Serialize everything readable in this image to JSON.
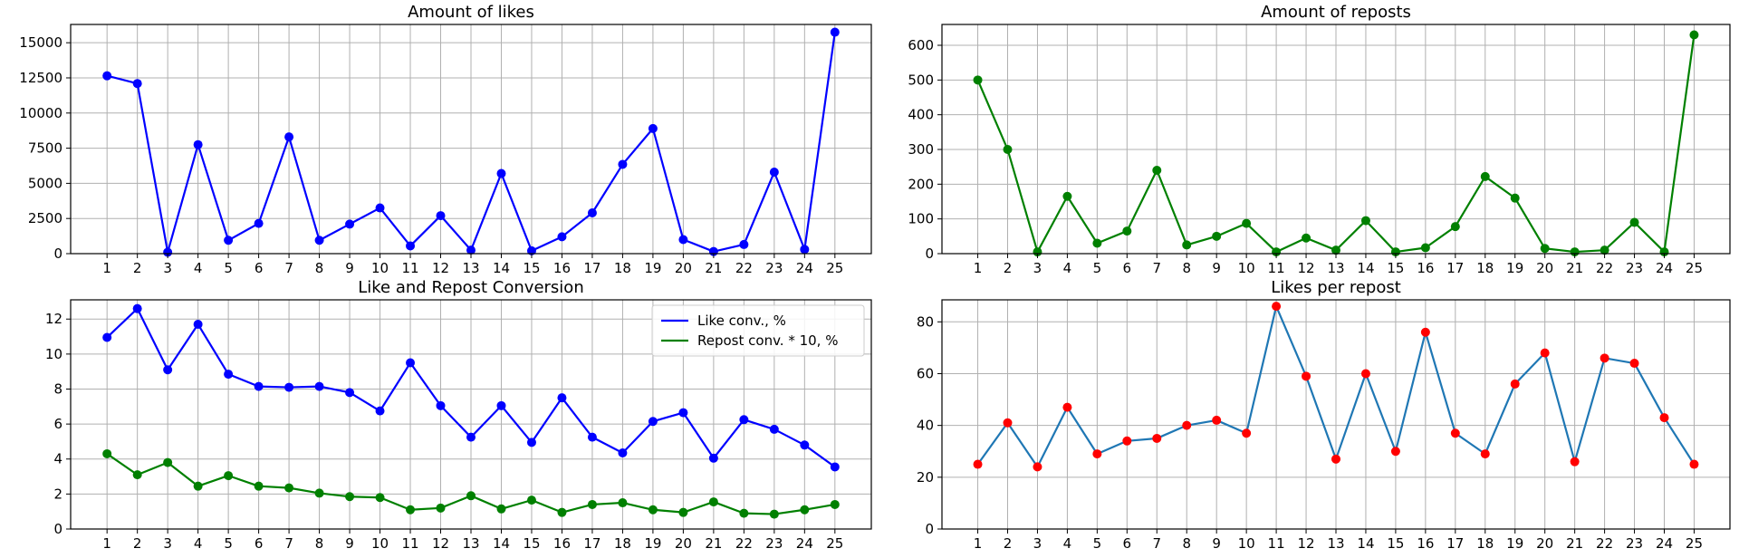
{
  "chart_data": [
    {
      "type": "line",
      "title": "Amount of likes",
      "xlabel": "",
      "ylabel": "",
      "x": [
        1,
        2,
        3,
        4,
        5,
        6,
        7,
        8,
        9,
        10,
        11,
        12,
        13,
        14,
        15,
        16,
        17,
        18,
        19,
        20,
        21,
        22,
        23,
        24,
        25
      ],
      "x_ticks": [
        1,
        2,
        3,
        4,
        5,
        6,
        7,
        8,
        9,
        10,
        11,
        12,
        13,
        14,
        15,
        16,
        17,
        18,
        19,
        20,
        21,
        22,
        23,
        24,
        25
      ],
      "y_ticks": [
        0,
        2500,
        5000,
        7500,
        10000,
        12500,
        15000
      ],
      "ylim": [
        0,
        16300
      ],
      "grid": true,
      "series": [
        {
          "color": "#0000ff",
          "marker_color": "#0000ff",
          "values": [
            12650,
            12100,
            100,
            7750,
            950,
            2150,
            8300,
            950,
            2100,
            3250,
            550,
            2700,
            250,
            5700,
            200,
            1200,
            2900,
            6350,
            8900,
            1000,
            150,
            650,
            5800,
            300,
            15750
          ]
        }
      ]
    },
    {
      "type": "line",
      "title": "Amount of reposts",
      "xlabel": "",
      "ylabel": "",
      "x": [
        1,
        2,
        3,
        4,
        5,
        6,
        7,
        8,
        9,
        10,
        11,
        12,
        13,
        14,
        15,
        16,
        17,
        18,
        19,
        20,
        21,
        22,
        23,
        24,
        25
      ],
      "x_ticks": [
        1,
        2,
        3,
        4,
        5,
        6,
        7,
        8,
        9,
        10,
        11,
        12,
        13,
        14,
        15,
        16,
        17,
        18,
        19,
        20,
        21,
        22,
        23,
        24,
        25
      ],
      "y_ticks": [
        0,
        100,
        200,
        300,
        400,
        500,
        600
      ],
      "ylim": [
        0,
        660
      ],
      "grid": true,
      "series": [
        {
          "color": "#008000",
          "marker_color": "#008000",
          "values": [
            500,
            300,
            5,
            165,
            30,
            65,
            240,
            25,
            50,
            87,
            5,
            45,
            10,
            95,
            5,
            17,
            78,
            222,
            160,
            15,
            5,
            10,
            90,
            5,
            630
          ]
        }
      ]
    },
    {
      "type": "line",
      "title": "Like and Repost Conversion",
      "xlabel": "",
      "ylabel": "",
      "x": [
        1,
        2,
        3,
        4,
        5,
        6,
        7,
        8,
        9,
        10,
        11,
        12,
        13,
        14,
        15,
        16,
        17,
        18,
        19,
        20,
        21,
        22,
        23,
        24,
        25
      ],
      "x_ticks": [
        1,
        2,
        3,
        4,
        5,
        6,
        7,
        8,
        9,
        10,
        11,
        12,
        13,
        14,
        15,
        16,
        17,
        18,
        19,
        20,
        21,
        22,
        23,
        24,
        25
      ],
      "y_ticks": [
        0,
        2,
        4,
        6,
        8,
        10,
        12
      ],
      "ylim": [
        0,
        13.1
      ],
      "grid": true,
      "legend": "top-right",
      "series": [
        {
          "name": "Like conv., %",
          "color": "#0000ff",
          "marker_color": "#0000ff",
          "values": [
            10.95,
            12.6,
            9.1,
            11.7,
            8.85,
            8.15,
            8.1,
            8.15,
            7.8,
            6.75,
            9.5,
            7.05,
            5.25,
            7.05,
            4.95,
            7.5,
            5.25,
            4.35,
            6.15,
            6.65,
            4.05,
            6.25,
            5.7,
            4.8,
            3.55
          ]
        },
        {
          "name": "Repost conv. * 10, %",
          "color": "#008000",
          "marker_color": "#008000",
          "values": [
            4.3,
            3.1,
            3.8,
            2.45,
            3.05,
            2.45,
            2.35,
            2.05,
            1.85,
            1.8,
            1.1,
            1.2,
            1.9,
            1.15,
            1.65,
            0.95,
            1.4,
            1.5,
            1.1,
            0.95,
            1.55,
            0.9,
            0.85,
            1.1,
            1.4
          ]
        }
      ]
    },
    {
      "type": "line",
      "title": "Likes per repost",
      "xlabel": "",
      "ylabel": "",
      "x": [
        1,
        2,
        3,
        4,
        5,
        6,
        7,
        8,
        9,
        10,
        11,
        12,
        13,
        14,
        15,
        16,
        17,
        18,
        19,
        20,
        21,
        22,
        23,
        24,
        25
      ],
      "x_ticks": [
        1,
        2,
        3,
        4,
        5,
        6,
        7,
        8,
        9,
        10,
        11,
        12,
        13,
        14,
        15,
        16,
        17,
        18,
        19,
        20,
        21,
        22,
        23,
        24,
        25
      ],
      "y_ticks": [
        0,
        20,
        40,
        60,
        80
      ],
      "ylim": [
        0,
        88.5
      ],
      "grid": true,
      "series": [
        {
          "color": "#1f77b4",
          "marker_color": "#ff0000",
          "values": [
            25,
            41,
            24,
            47,
            29,
            34,
            35,
            40,
            42,
            37,
            86,
            59,
            27,
            60,
            30,
            76,
            37,
            29,
            56,
            68,
            26,
            66,
            64,
            43,
            25
          ]
        }
      ]
    }
  ]
}
